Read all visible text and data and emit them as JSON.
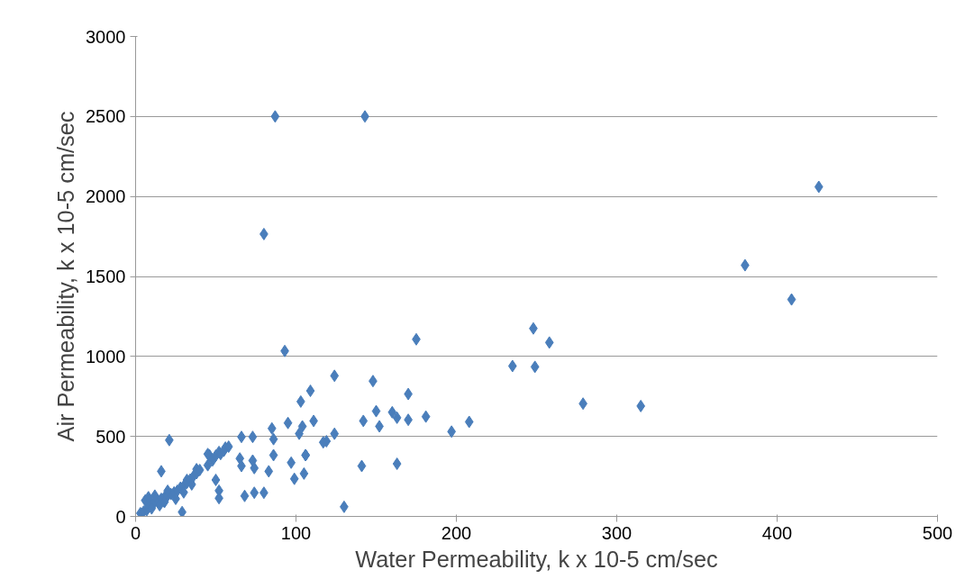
{
  "chart_data": {
    "type": "scatter",
    "xlabel": "Water Permeability, k x 10-5 cm/sec",
    "ylabel": "Air Permeability, k x 10-5 cm/sec",
    "xlim": [
      0,
      500
    ],
    "xticks": [
      0,
      100,
      200,
      300,
      400,
      500
    ],
    "ylim": [
      0,
      3000
    ],
    "yticks": [
      0,
      500,
      1000,
      1500,
      2000,
      2500,
      3000
    ],
    "grid": "y",
    "marker": "diamond",
    "series": [
      {
        "color": "#4a7ebb",
        "x": [
          87,
          143,
          80,
          426,
          380,
          409,
          235,
          248,
          258,
          249,
          279,
          315,
          175,
          124,
          109,
          103,
          148,
          170,
          142,
          150,
          160,
          163,
          170,
          181,
          152,
          197,
          208,
          111,
          104,
          119,
          124,
          106,
          105,
          141,
          163,
          130,
          93,
          21,
          66,
          73,
          85,
          95,
          86,
          102,
          117,
          16,
          52,
          56,
          46,
          38,
          32,
          65,
          73,
          66,
          74,
          86,
          83,
          97,
          106,
          99,
          50,
          52,
          52,
          68,
          74,
          80,
          29,
          3,
          5,
          7,
          8,
          10,
          12,
          14,
          16,
          18,
          20,
          22,
          24,
          26,
          28,
          30,
          32,
          34,
          36,
          38,
          40,
          45,
          48,
          50,
          53,
          6,
          8,
          10,
          12,
          15,
          18,
          20,
          25,
          30,
          35,
          45,
          55,
          58
        ],
        "values": [
          2500,
          2500,
          1765,
          2060,
          1570,
          1356,
          940,
          1175,
          1087,
          935,
          705,
          690,
          1107,
          879,
          785,
          718,
          846,
          765,
          597,
          658,
          651,
          617,
          604,
          624,
          563,
          530,
          591,
          597,
          563,
          470,
          517,
          383,
          268,
          315,
          329,
          60,
          1034,
          477,
          497,
          497,
          550,
          584,
          483,
          517,
          463,
          282,
          403,
          430,
          383,
          295,
          228,
          362,
          349,
          315,
          302,
          383,
          282,
          336,
          383,
          235,
          228,
          161,
          114,
          128,
          148,
          148,
          27,
          20,
          30,
          40,
          60,
          80,
          90,
          100,
          110,
          120,
          130,
          140,
          150,
          160,
          180,
          190,
          210,
          230,
          250,
          270,
          290,
          320,
          350,
          380,
          390,
          100,
          120,
          50,
          130,
          70,
          90,
          160,
          110,
          150,
          200,
          390,
          410,
          436
        ]
      }
    ]
  }
}
